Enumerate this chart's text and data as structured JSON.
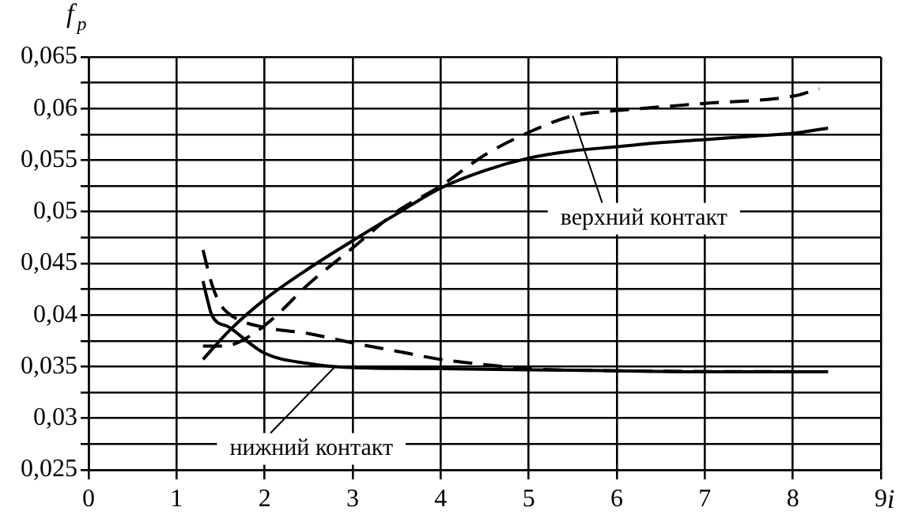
{
  "chart_data": {
    "type": "line",
    "ylabel": "f$_{p}$",
    "xlabel": "i",
    "series": [
      {
        "color": "#000000",
        "line_style": "solid",
        "x": [
          1.3,
          1.6,
          2,
          2.5,
          3,
          3.5,
          4,
          4.5,
          5,
          5.5,
          6,
          6.5,
          7,
          7.5,
          8,
          8.4
        ],
        "values": [
          0.0357,
          0.0385,
          0.0415,
          0.0445,
          0.0472,
          0.0498,
          0.0523,
          0.054,
          0.0552,
          0.0559,
          0.0563,
          0.0567,
          0.057,
          0.0573,
          0.0576,
          0.0581
        ]
      },
      {
        "color": "#000000",
        "line_style": "dashed",
        "x": [
          1.3,
          1.55,
          1.8,
          2.1,
          2.5,
          3,
          3.5,
          4,
          4.5,
          5,
          5.5,
          6,
          7,
          8,
          8.3
        ],
        "values": [
          0.037,
          0.037,
          0.0378,
          0.0397,
          0.043,
          0.0465,
          0.05,
          0.0525,
          0.0555,
          0.0577,
          0.0593,
          0.0598,
          0.0605,
          0.0612,
          0.0619
        ]
      },
      {
        "color": "#000000",
        "line_style": "solid",
        "x": [
          1.3,
          1.35,
          1.4,
          1.6,
          2,
          2.5,
          3,
          4,
          5,
          6,
          7,
          8.4
        ],
        "values": [
          0.0433,
          0.0415,
          0.04,
          0.0388,
          0.0363,
          0.0353,
          0.0349,
          0.0348,
          0.0347,
          0.0346,
          0.0345,
          0.0345
        ]
      },
      {
        "color": "#000000",
        "line_style": "dashed",
        "x": [
          1.3,
          1.4,
          1.5,
          1.65,
          2,
          2.5,
          3,
          3.5,
          4,
          4.5,
          5,
          6,
          8.4
        ],
        "values": [
          0.0463,
          0.043,
          0.041,
          0.0398,
          0.0388,
          0.0382,
          0.0373,
          0.0365,
          0.0357,
          0.0352,
          0.0348,
          0.0346,
          0.0345
        ]
      }
    ],
    "annotations": [
      {
        "text": "верхний контакт",
        "x": 5.5,
        "y": 0.0593
      },
      {
        "text": "нижний контакт",
        "x": 2.8,
        "y": 0.035
      }
    ],
    "xlim": [
      0,
      9
    ],
    "xticks": [
      0,
      1,
      2,
      3,
      4,
      5,
      6,
      7,
      8,
      9
    ],
    "ylim": [
      0.025,
      0.065
    ],
    "yticks": [
      {
        "value": 0.025,
        "label": "0,025"
      },
      {
        "value": 0.0275,
        "label": null
      },
      {
        "value": 0.03,
        "label": "0,03"
      },
      {
        "value": 0.0325,
        "label": null
      },
      {
        "value": 0.035,
        "label": "0,035"
      },
      {
        "value": 0.0375,
        "label": null
      },
      {
        "value": 0.04,
        "label": "0,04"
      },
      {
        "value": 0.0425,
        "label": null
      },
      {
        "value": 0.045,
        "label": "0,045"
      },
      {
        "value": 0.0475,
        "label": null
      },
      {
        "value": 0.05,
        "label": "0,05"
      },
      {
        "value": 0.0525,
        "label": null
      },
      {
        "value": 0.055,
        "label": "0,055"
      },
      {
        "value": 0.0575,
        "label": null
      },
      {
        "value": 0.06,
        "label": "0,06"
      },
      {
        "value": 0.0625,
        "label": null
      },
      {
        "value": 0.065,
        "label": "0,065"
      }
    ],
    "grid": true,
    "legend": false,
    "marker": "none"
  }
}
